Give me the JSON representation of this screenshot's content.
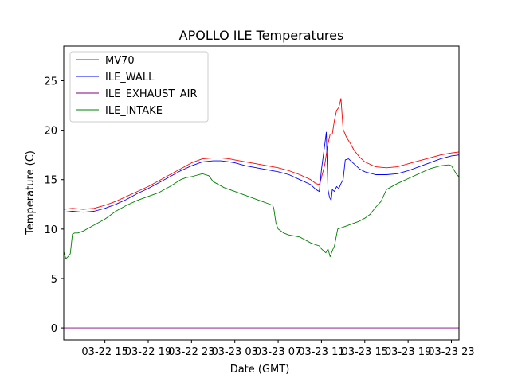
{
  "chart_data": {
    "type": "line",
    "title": "APOLLO ILE Temperatures",
    "xlabel": "Date (GMT)",
    "ylabel": "Temperature (C)",
    "xlim": [
      11.2,
      47.7
    ],
    "ylim": [
      -1.2,
      28.5
    ],
    "x_ticks": [
      {
        "value": 15,
        "label": "03-22 15"
      },
      {
        "value": 19,
        "label": "03-22 19"
      },
      {
        "value": 23,
        "label": "03-22 23"
      },
      {
        "value": 27,
        "label": "03-23 03"
      },
      {
        "value": 31,
        "label": "03-23 07"
      },
      {
        "value": 35,
        "label": "03-23 11"
      },
      {
        "value": 39,
        "label": "03-23 15"
      },
      {
        "value": 43,
        "label": "03-23 19"
      },
      {
        "value": 47,
        "label": "03-23 23"
      }
    ],
    "y_ticks": [
      {
        "value": 0,
        "label": "0"
      },
      {
        "value": 5,
        "label": "5"
      },
      {
        "value": 10,
        "label": "10"
      },
      {
        "value": 15,
        "label": "15"
      },
      {
        "value": 20,
        "label": "20"
      },
      {
        "value": 25,
        "label": "25"
      }
    ],
    "legend_position": "top-left",
    "series": [
      {
        "name": "MV70",
        "color": "#ff0000",
        "x": [
          11.2,
          12.0,
          13.0,
          14.0,
          15.0,
          16.0,
          17.0,
          18.0,
          19.0,
          20.0,
          21.0,
          22.0,
          23.0,
          24.0,
          25.0,
          25.7,
          26.5,
          27.0,
          28.0,
          29.0,
          30.0,
          31.0,
          32.0,
          33.0,
          34.0,
          34.5,
          34.8,
          35.0,
          35.3,
          35.6,
          35.8,
          36.0,
          36.2,
          36.4,
          36.6,
          36.8,
          37.0,
          37.3,
          37.7,
          38.0,
          38.5,
          39.0,
          40.0,
          41.0,
          42.0,
          43.0,
          44.0,
          45.0,
          46.0,
          47.0,
          47.7
        ],
        "values": [
          12.0,
          12.1,
          12.0,
          12.1,
          12.4,
          12.8,
          13.3,
          13.8,
          14.3,
          14.9,
          15.5,
          16.1,
          16.7,
          17.1,
          17.2,
          17.2,
          17.1,
          17.0,
          16.8,
          16.6,
          16.4,
          16.2,
          15.9,
          15.5,
          15.0,
          14.6,
          14.5,
          15.2,
          16.5,
          18.6,
          19.6,
          19.6,
          21.0,
          22.0,
          22.3,
          23.2,
          20.1,
          19.3,
          18.6,
          18.0,
          17.3,
          16.8,
          16.3,
          16.2,
          16.3,
          16.6,
          16.9,
          17.2,
          17.5,
          17.7,
          17.8
        ]
      },
      {
        "name": "ILE_WALL",
        "color": "#0000ff",
        "x": [
          11.2,
          12.0,
          13.0,
          14.0,
          15.0,
          16.0,
          17.0,
          18.0,
          19.0,
          20.0,
          21.0,
          22.0,
          23.0,
          24.0,
          25.0,
          25.7,
          26.5,
          27.0,
          28.0,
          29.0,
          30.0,
          31.0,
          32.0,
          33.0,
          34.0,
          34.5,
          34.8,
          35.0,
          35.15,
          35.3,
          35.45,
          35.6,
          35.75,
          35.9,
          36.0,
          36.2,
          36.4,
          36.6,
          36.8,
          37.0,
          37.2,
          37.5,
          38.0,
          38.5,
          39.0,
          40.0,
          41.0,
          42.0,
          43.0,
          44.0,
          45.0,
          46.0,
          47.0,
          47.7
        ],
        "values": [
          11.7,
          11.8,
          11.7,
          11.8,
          12.1,
          12.5,
          13.0,
          13.6,
          14.1,
          14.7,
          15.3,
          15.9,
          16.4,
          16.8,
          16.9,
          16.9,
          16.8,
          16.7,
          16.4,
          16.2,
          16.0,
          15.8,
          15.5,
          15.0,
          14.5,
          14.0,
          13.8,
          16.0,
          17.3,
          18.5,
          19.8,
          14.0,
          13.2,
          12.9,
          14.0,
          13.8,
          14.3,
          14.1,
          14.6,
          15.0,
          17.0,
          17.1,
          16.6,
          16.1,
          15.8,
          15.5,
          15.5,
          15.6,
          15.9,
          16.3,
          16.7,
          17.1,
          17.4,
          17.5
        ]
      },
      {
        "name": "ILE_EXHAUST_AIR",
        "color": "#800080",
        "x": [
          11.2,
          47.7
        ],
        "values": [
          0.0,
          0.0
        ]
      },
      {
        "name": "ILE_INTAKE",
        "color": "#008000",
        "x": [
          11.2,
          11.4,
          11.6,
          11.8,
          12.0,
          12.2,
          12.5,
          13.0,
          14.0,
          15.0,
          16.0,
          17.0,
          18.0,
          19.0,
          20.0,
          21.0,
          22.0,
          22.5,
          23.0,
          24.0,
          24.6,
          25.0,
          26.0,
          27.0,
          28.0,
          29.0,
          30.0,
          30.5,
          30.6,
          30.8,
          31.0,
          31.5,
          32.0,
          33.0,
          34.0,
          34.5,
          34.8,
          35.0,
          35.2,
          35.4,
          35.6,
          35.8,
          36.0,
          36.2,
          36.5,
          37.0,
          37.5,
          38.0,
          38.5,
          39.0,
          39.5,
          40.0,
          40.5,
          41.0,
          42.0,
          43.0,
          44.0,
          45.0,
          46.0,
          46.8,
          47.0,
          47.5,
          47.7
        ],
        "values": [
          7.7,
          7.0,
          7.2,
          7.5,
          9.5,
          9.6,
          9.6,
          9.8,
          10.4,
          11.0,
          11.8,
          12.4,
          12.9,
          13.3,
          13.7,
          14.3,
          15.0,
          15.2,
          15.3,
          15.6,
          15.4,
          14.8,
          14.2,
          13.8,
          13.4,
          13.0,
          12.6,
          12.4,
          12.1,
          10.6,
          10.0,
          9.6,
          9.4,
          9.2,
          8.6,
          8.4,
          8.3,
          8.0,
          7.8,
          7.6,
          8.0,
          7.2,
          7.8,
          8.3,
          10.0,
          10.2,
          10.4,
          10.6,
          10.8,
          11.1,
          11.5,
          12.2,
          12.8,
          14.0,
          14.6,
          15.1,
          15.6,
          16.1,
          16.4,
          16.5,
          16.4,
          15.5,
          15.3
        ]
      }
    ]
  }
}
